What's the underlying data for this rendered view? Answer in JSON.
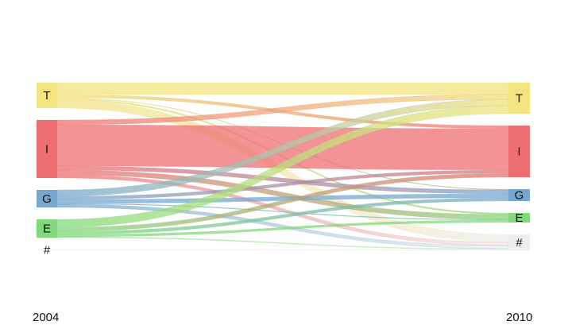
{
  "chart_data": {
    "type": "alluvial",
    "axes": [
      "2004",
      "2010"
    ],
    "strata": [
      "T",
      "I",
      "G",
      "E",
      "#"
    ],
    "colors": {
      "T": "#f2e37e",
      "I": "#ee6f72",
      "G": "#76a8cf",
      "E": "#82d97c",
      "#": "#eeeeee"
    },
    "flows": [
      {
        "from": "T",
        "to": "T",
        "value": 15
      },
      {
        "from": "T",
        "to": "I",
        "value": 4
      },
      {
        "from": "T",
        "to": "G",
        "value": 1
      },
      {
        "from": "T",
        "to": "E",
        "value": 2
      },
      {
        "from": "T",
        "to": "#",
        "value": 10
      },
      {
        "from": "I",
        "to": "T",
        "value": 6
      },
      {
        "from": "I",
        "to": "I",
        "value": 52
      },
      {
        "from": "I",
        "to": "G",
        "value": 5
      },
      {
        "from": "I",
        "to": "E",
        "value": 6
      },
      {
        "from": "I",
        "to": "#",
        "value": 4
      },
      {
        "from": "G",
        "to": "T",
        "value": 8
      },
      {
        "from": "G",
        "to": "I",
        "value": 4
      },
      {
        "from": "G",
        "to": "G",
        "value": 5
      },
      {
        "from": "G",
        "to": "E",
        "value": 1
      },
      {
        "from": "G",
        "to": "#",
        "value": 4
      },
      {
        "from": "E",
        "to": "T",
        "value": 10
      },
      {
        "from": "E",
        "to": "I",
        "value": 5
      },
      {
        "from": "E",
        "to": "G",
        "value": 4
      },
      {
        "from": "E",
        "to": "E",
        "value": 3
      },
      {
        "from": "E",
        "to": "#",
        "value": 1
      },
      {
        "from": "#",
        "to": "#",
        "value": 1
      }
    ]
  }
}
